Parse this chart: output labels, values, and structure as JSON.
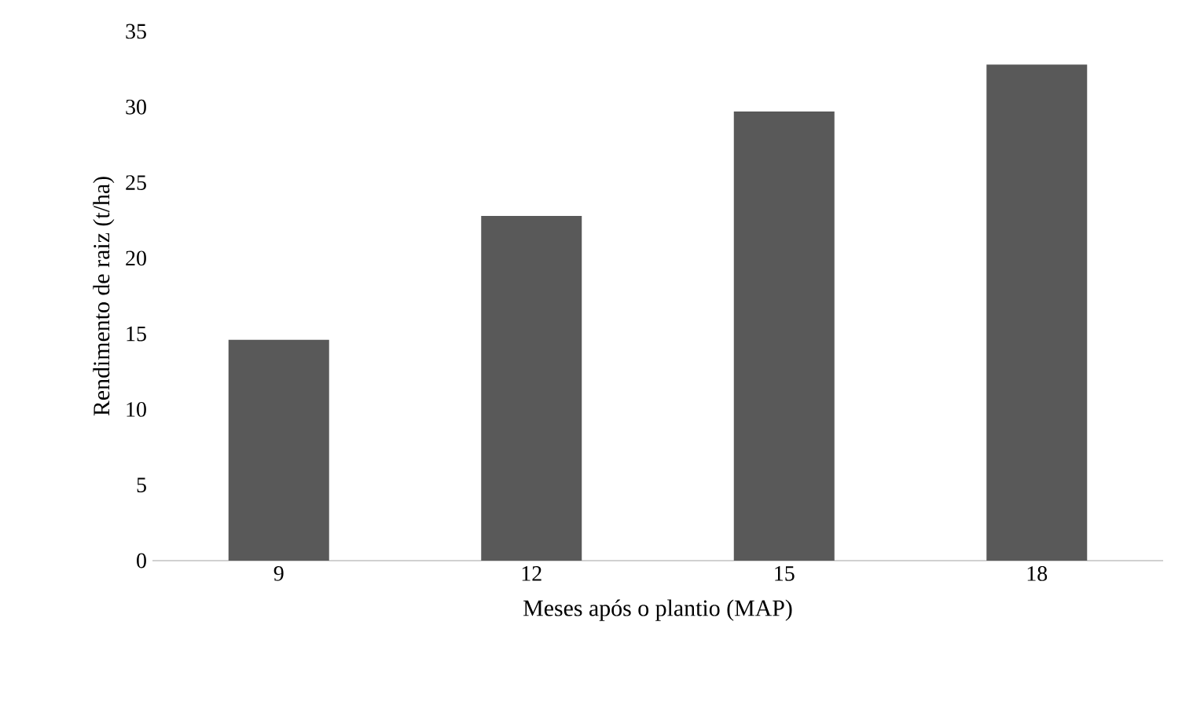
{
  "chart_data": {
    "type": "bar",
    "xlabel": "Meses após o plantio (MAP)",
    "ylabel": "Rendimento de raiz (t/ha)",
    "categories": [
      "9",
      "12",
      "15",
      "18"
    ],
    "values": [
      14.6,
      22.8,
      29.7,
      32.8
    ],
    "color": "#595959",
    "ylim": [
      0,
      35
    ],
    "yticks": [
      0,
      5,
      10,
      15,
      20,
      25,
      30,
      35
    ],
    "grid": false
  }
}
